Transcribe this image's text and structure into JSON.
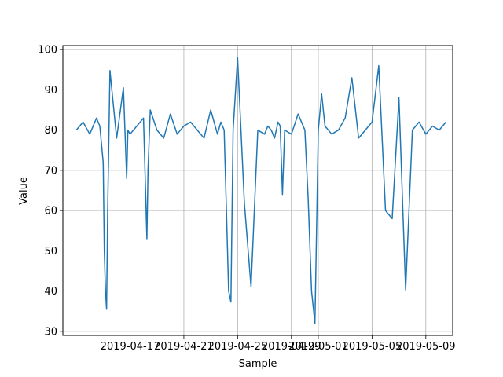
{
  "chart_data": {
    "type": "line",
    "title": "",
    "xlabel": "Sample",
    "ylabel": "Value",
    "x_type": "date",
    "xlim": [
      "2019-04-12",
      "2019-05-11"
    ],
    "ylim": [
      29,
      101
    ],
    "x_ticks": [
      "2019-04-17",
      "2019-04-21",
      "2019-04-25",
      "2019-04-29",
      "2019-05-01",
      "2019-05-05",
      "2019-05-09"
    ],
    "x_tick_labels": [
      "2019-04-17",
      "2019-04-21",
      "2019-04-25",
      "2019-04-29",
      "2019-05-01",
      "2019-05-05",
      "2019-05-09"
    ],
    "y_ticks": [
      30,
      40,
      50,
      60,
      70,
      80,
      90,
      100
    ],
    "y_tick_labels": [
      "30",
      "40",
      "50",
      "60",
      "70",
      "80",
      "90",
      "100"
    ],
    "grid": true,
    "legend": "none",
    "series": [
      {
        "color": "#1f77b4",
        "x": [
          "2019-04-13",
          "2019-04-13T12:00",
          "2019-04-14",
          "2019-04-14T12:00",
          "2019-04-14T18:00",
          "2019-04-15",
          "2019-04-15T02:00",
          "2019-04-15T04:00",
          "2019-04-15T06:00",
          "2019-04-15T08:00",
          "2019-04-15T12:00",
          "2019-04-16",
          "2019-04-16T12:00",
          "2019-04-16T18:00",
          "2019-04-16T20:00",
          "2019-04-17",
          "2019-04-17T12:00",
          "2019-04-18",
          "2019-04-18T06:00",
          "2019-04-18T08:00",
          "2019-04-18T12:00",
          "2019-04-19",
          "2019-04-19T12:00",
          "2019-04-20",
          "2019-04-20T12:00",
          "2019-04-21",
          "2019-04-21T12:00",
          "2019-04-22",
          "2019-04-22T12:00",
          "2019-04-23",
          "2019-04-23T12:00",
          "2019-04-23T18:00",
          "2019-04-24",
          "2019-04-24T04:00",
          "2019-04-24T08:00",
          "2019-04-24T12:00",
          "2019-04-24T16:00",
          "2019-04-25",
          "2019-04-25T12:00",
          "2019-04-26",
          "2019-04-26T12:00",
          "2019-04-27",
          "2019-04-27T06:00",
          "2019-04-27T12:00",
          "2019-04-27T18:00",
          "2019-04-28",
          "2019-04-28T04:00",
          "2019-04-28T08:00",
          "2019-04-28T12:00",
          "2019-04-29",
          "2019-04-29T12:00",
          "2019-04-30",
          "2019-04-30T06:00",
          "2019-04-30T12:00",
          "2019-04-30T18:00",
          "2019-05-01",
          "2019-05-01T06:00",
          "2019-05-01T12:00",
          "2019-05-02",
          "2019-05-02T12:00",
          "2019-05-03",
          "2019-05-03T12:00",
          "2019-05-04",
          "2019-05-04T12:00",
          "2019-05-05",
          "2019-05-05T12:00",
          "2019-05-06",
          "2019-05-06T12:00",
          "2019-05-07",
          "2019-05-07T12:00",
          "2019-05-08",
          "2019-05-08T12:00",
          "2019-05-09",
          "2019-05-09T12:00",
          "2019-05-10",
          "2019-05-10T12:00"
        ],
        "y": [
          80,
          82,
          79,
          83,
          81,
          72,
          50,
          40,
          35.5,
          60,
          94.8,
          78,
          90.5,
          68,
          80,
          79,
          81,
          83,
          53,
          70,
          85,
          80,
          78,
          84,
          79,
          81,
          82,
          80,
          78,
          85,
          79,
          82,
          80,
          60,
          40,
          37.3,
          80,
          98,
          62,
          41,
          80,
          79,
          81,
          80,
          78,
          82,
          81,
          64,
          80,
          79,
          84,
          80,
          63,
          40,
          32,
          80,
          89,
          81,
          79,
          80,
          83,
          93,
          78,
          80,
          82,
          96,
          60,
          58,
          88,
          40.3,
          80,
          82,
          79,
          81,
          80,
          82
        ]
      }
    ]
  }
}
